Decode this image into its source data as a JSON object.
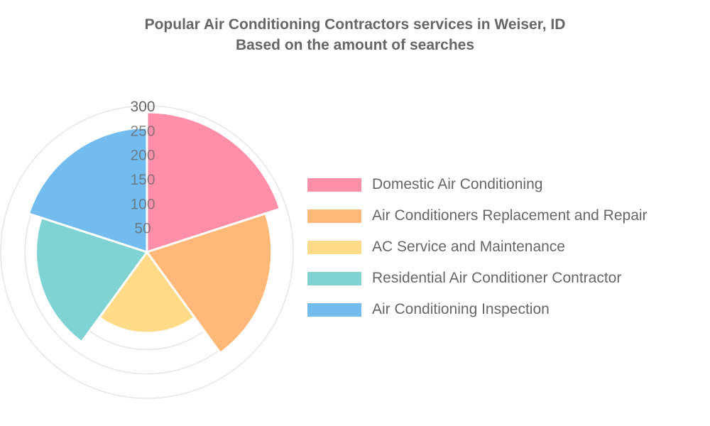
{
  "title": {
    "line1": "Popular Air Conditioning Contractors services in Weiser, ID",
    "line2": "Based on the amount of searches"
  },
  "chart_data": {
    "type": "polarArea",
    "categories": [
      "Domestic Air Conditioning",
      "Air Conditioners Replacement and Repair",
      "AC Service and Maintenance",
      "Residential Air Conditioner Contractor",
      "Air Conditioning Inspection"
    ],
    "values": [
      287,
      256,
      166,
      228,
      255
    ],
    "colors": [
      "#ff8fa8",
      "#ffb878",
      "#ffdb88",
      "#80d3d3",
      "#72bcf0"
    ],
    "r_ticks": [
      50,
      100,
      150,
      200,
      250,
      300
    ],
    "r_max": 300,
    "grid": true,
    "legend": "right"
  }
}
